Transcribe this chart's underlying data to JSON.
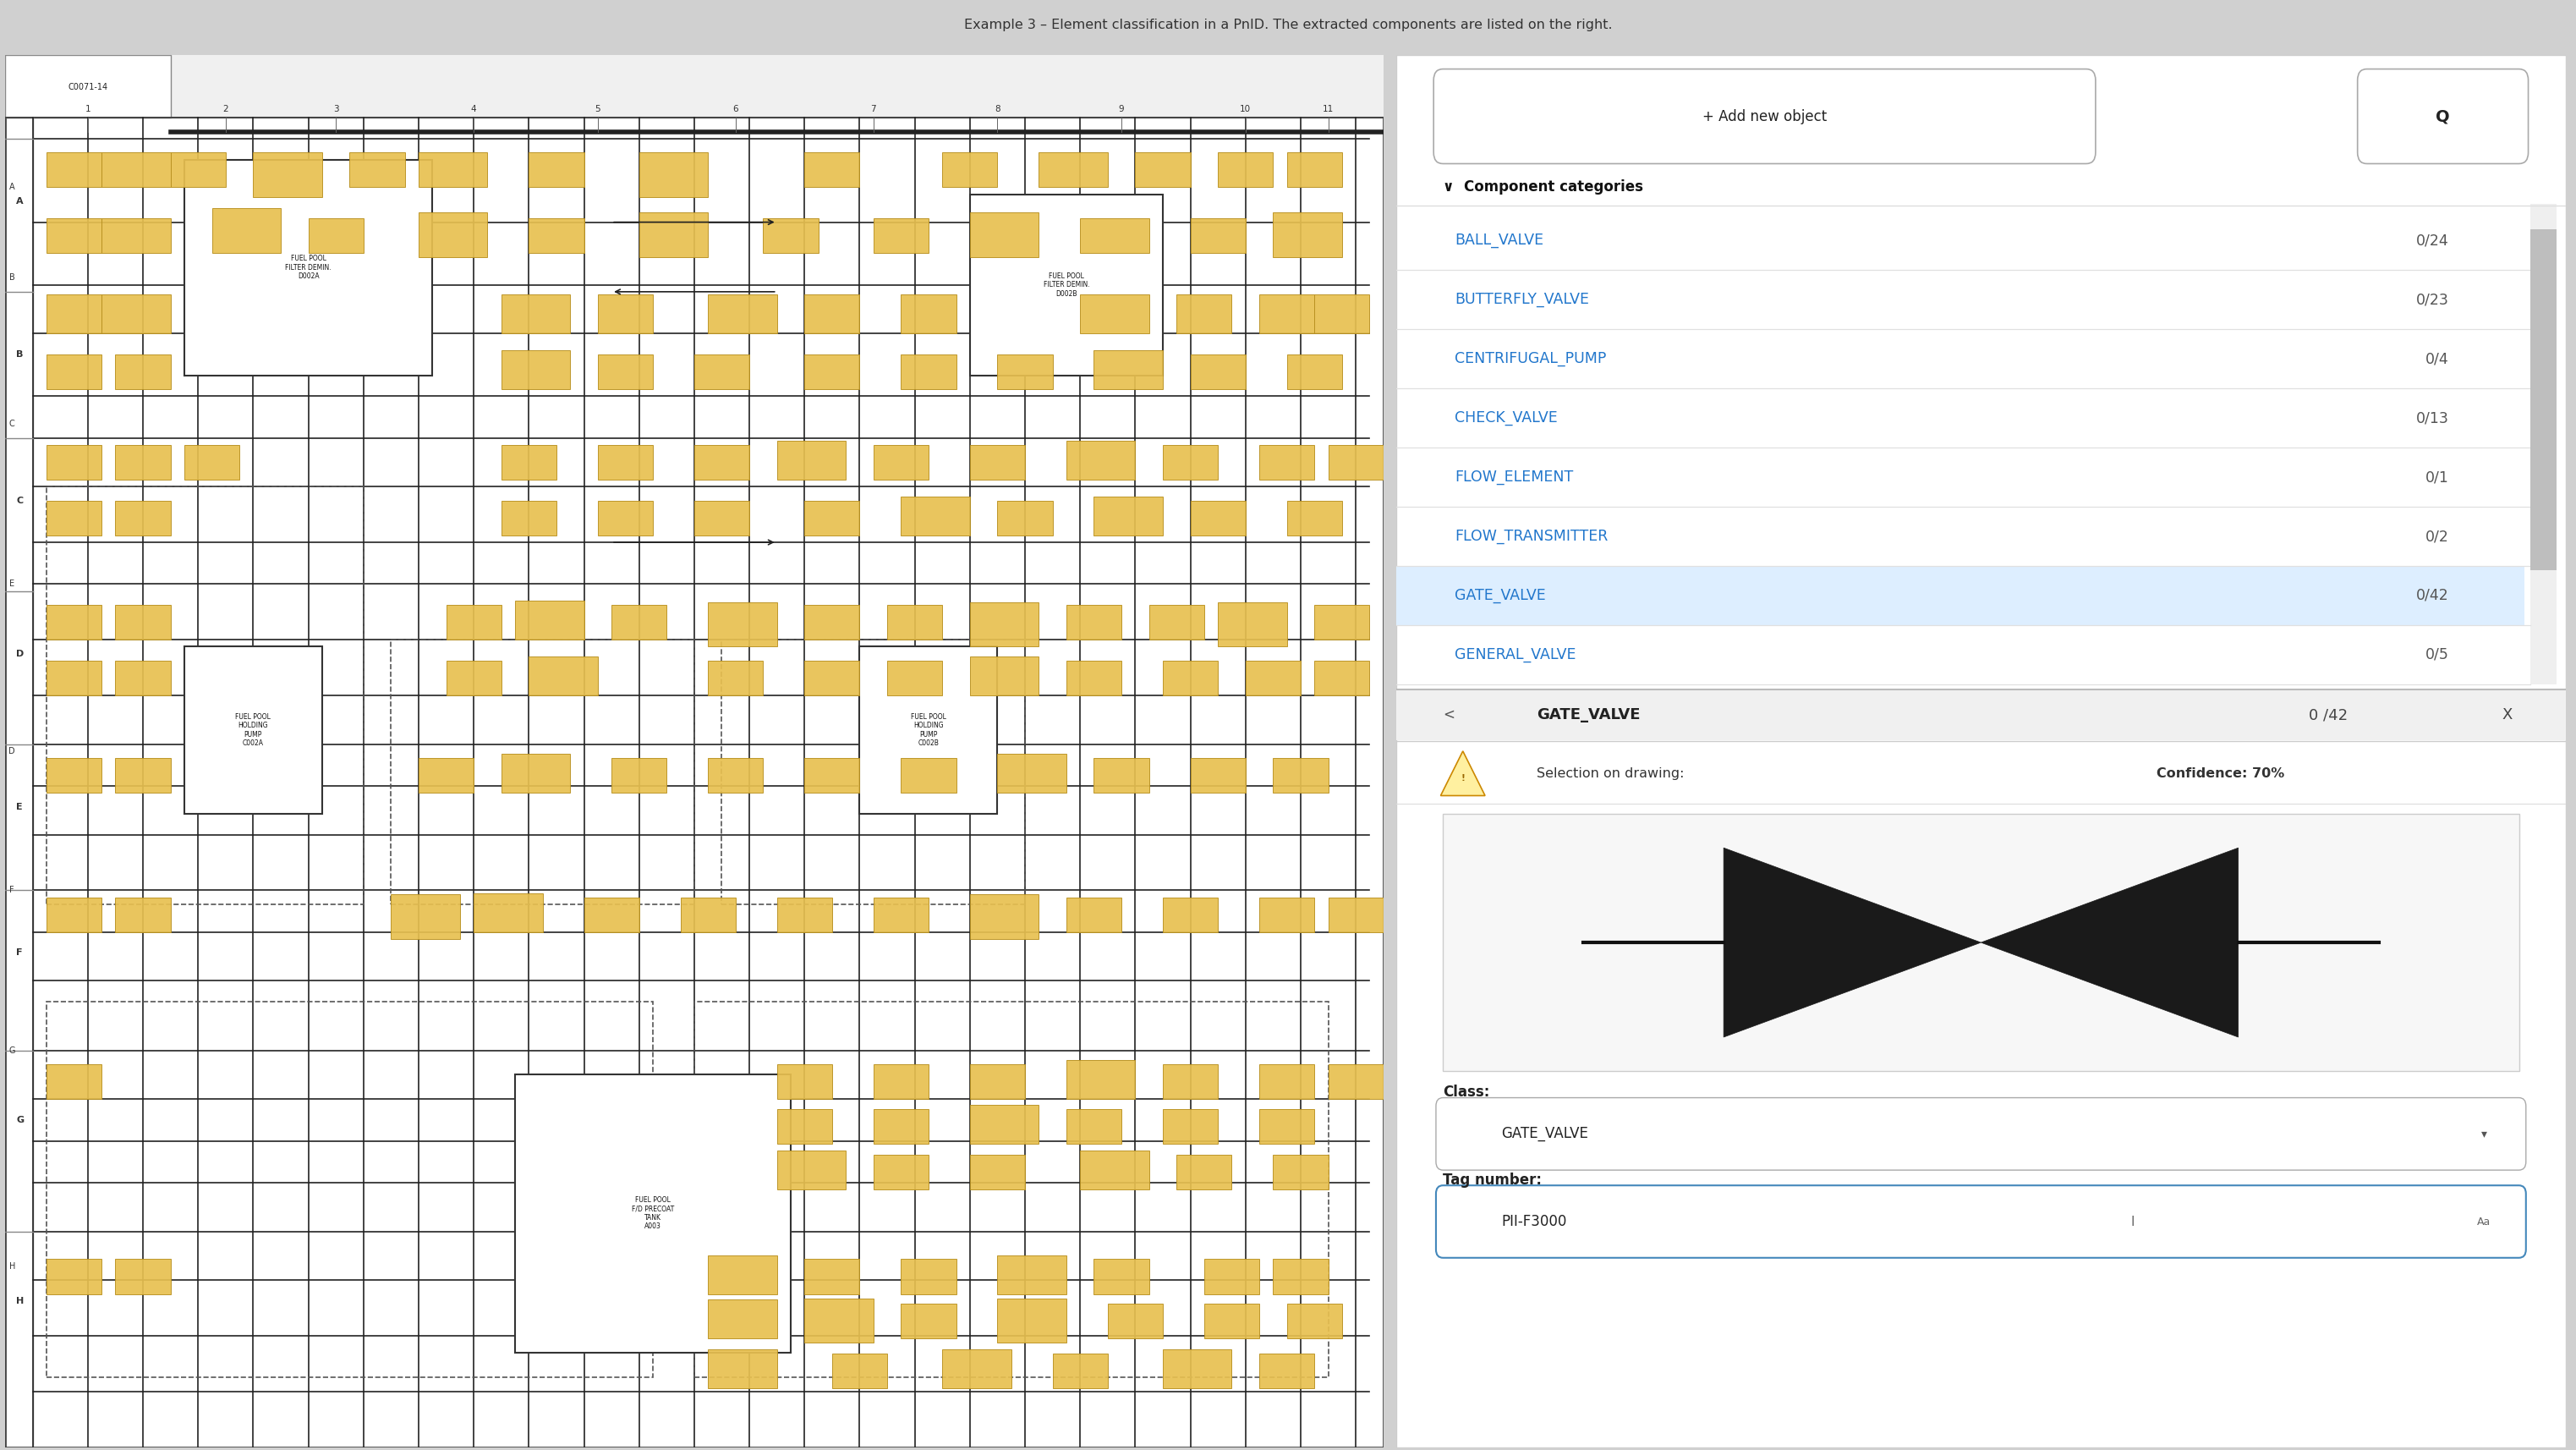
{
  "title": "Example 3 – Element classification in a PnID. The extracted components are listed on the right.",
  "title_color": "#333333",
  "title_fontsize": 11.5,
  "outer_bg_color": "#d0d0d0",
  "diagram_bg": "#ffffff",
  "panel_bg": "#ffffff",
  "panel_border": "#cccccc",
  "add_btn_text": "+ Add new object",
  "search_icon": "Q",
  "section_title": "Component categories",
  "components": [
    {
      "name": "BALL_VALVE",
      "count": "0/24",
      "selected": false
    },
    {
      "name": "BUTTERFLY_VALVE",
      "count": "0/23",
      "selected": false
    },
    {
      "name": "CENTRIFUGAL_PUMP",
      "count": "0/4",
      "selected": false
    },
    {
      "name": "CHECK_VALVE",
      "count": "0/13",
      "selected": false
    },
    {
      "name": "FLOW_ELEMENT",
      "count": "0/1",
      "selected": false
    },
    {
      "name": "FLOW_TRANSMITTER",
      "count": "0/2",
      "selected": false
    },
    {
      "name": "GATE_VALVE",
      "count": "0/42",
      "selected": true
    },
    {
      "name": "GENERAL_VALVE",
      "count": "0/5",
      "selected": false
    }
  ],
  "selected_row_color": "#ddeeff",
  "component_text_color": "#2277cc",
  "count_text_color": "#555555",
  "section_label_color": "#111111",
  "separator_color": "#e0e0e0",
  "scrollbar_color": "#aaaaaa",
  "bottom_label_selection": "Selection on drawing:",
  "bottom_label_confidence": "Confidence: 70%",
  "class_label": "Class:",
  "class_value": "GATE_VALVE",
  "tag_label": "Tag number:",
  "tag_value": "PII-F3000",
  "left_arrow_icon": "<",
  "close_icon": "X",
  "selected_bottom_name": "GATE_VALVE",
  "selected_bottom_count": "0 /42",
  "diagram_border_color": "#888888",
  "gold_face": "#e8c050",
  "gold_border": "#b89020",
  "diagram_line_color": "#222222",
  "col_labels": [
    "1",
    "2",
    "3",
    "4",
    "5",
    "6",
    "7",
    "8",
    "9",
    "10",
    "11"
  ],
  "row_labels": [
    "A",
    "B",
    "C",
    "D",
    "E",
    "F",
    "G",
    "H"
  ],
  "diagram_title": "C0071-14"
}
